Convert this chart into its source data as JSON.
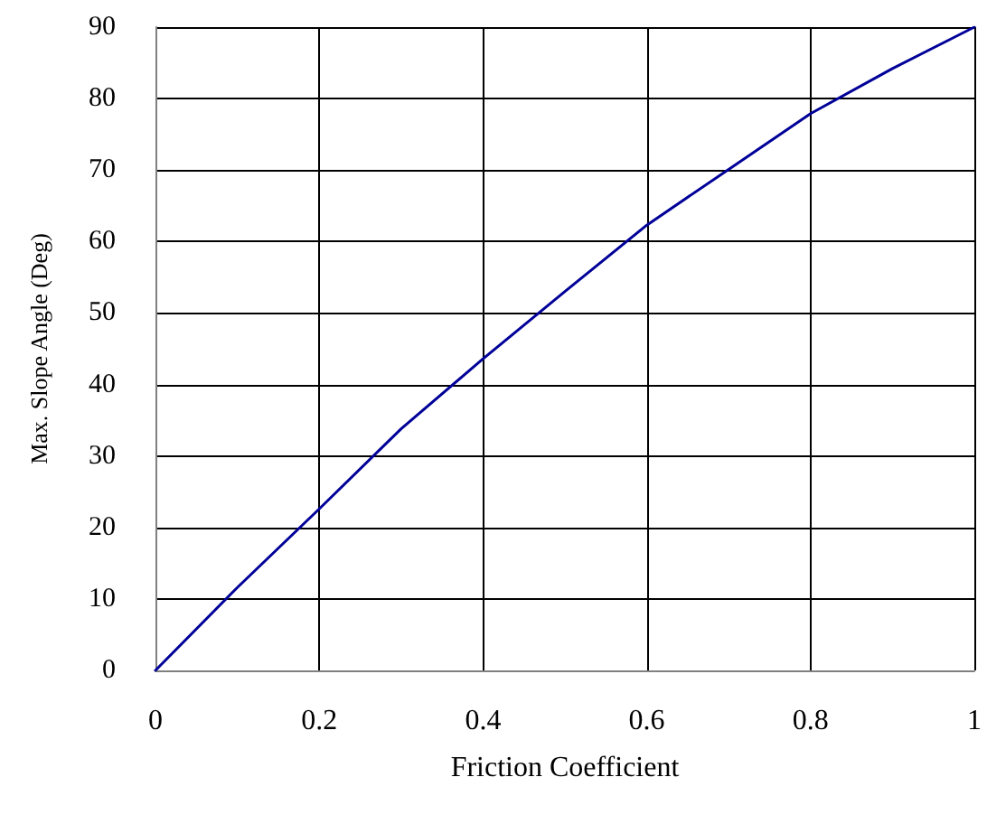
{
  "chart_data": {
    "type": "line",
    "xlabel": "Friction Coefficient",
    "ylabel": "Max. Slope Angle (Deg)",
    "x": [
      0,
      0.1,
      0.2,
      0.3,
      0.4,
      0.5,
      0.6,
      0.7,
      0.8,
      0.9,
      1
    ],
    "series": [
      {
        "color": "#000099",
        "values": [
          0,
          11.6,
          22.6,
          33.8,
          43.6,
          53,
          62.3,
          70.1,
          77.9,
          84.2,
          90
        ]
      }
    ],
    "xlim": [
      0,
      1
    ],
    "xticks": [
      0,
      0.2,
      0.4,
      0.6,
      0.8,
      1
    ],
    "ylim": [
      0,
      90
    ],
    "yticks": [
      0,
      10,
      20,
      30,
      40,
      50,
      60,
      70,
      80,
      90
    ],
    "grid": true,
    "marker": "none",
    "line_style": "solid"
  }
}
